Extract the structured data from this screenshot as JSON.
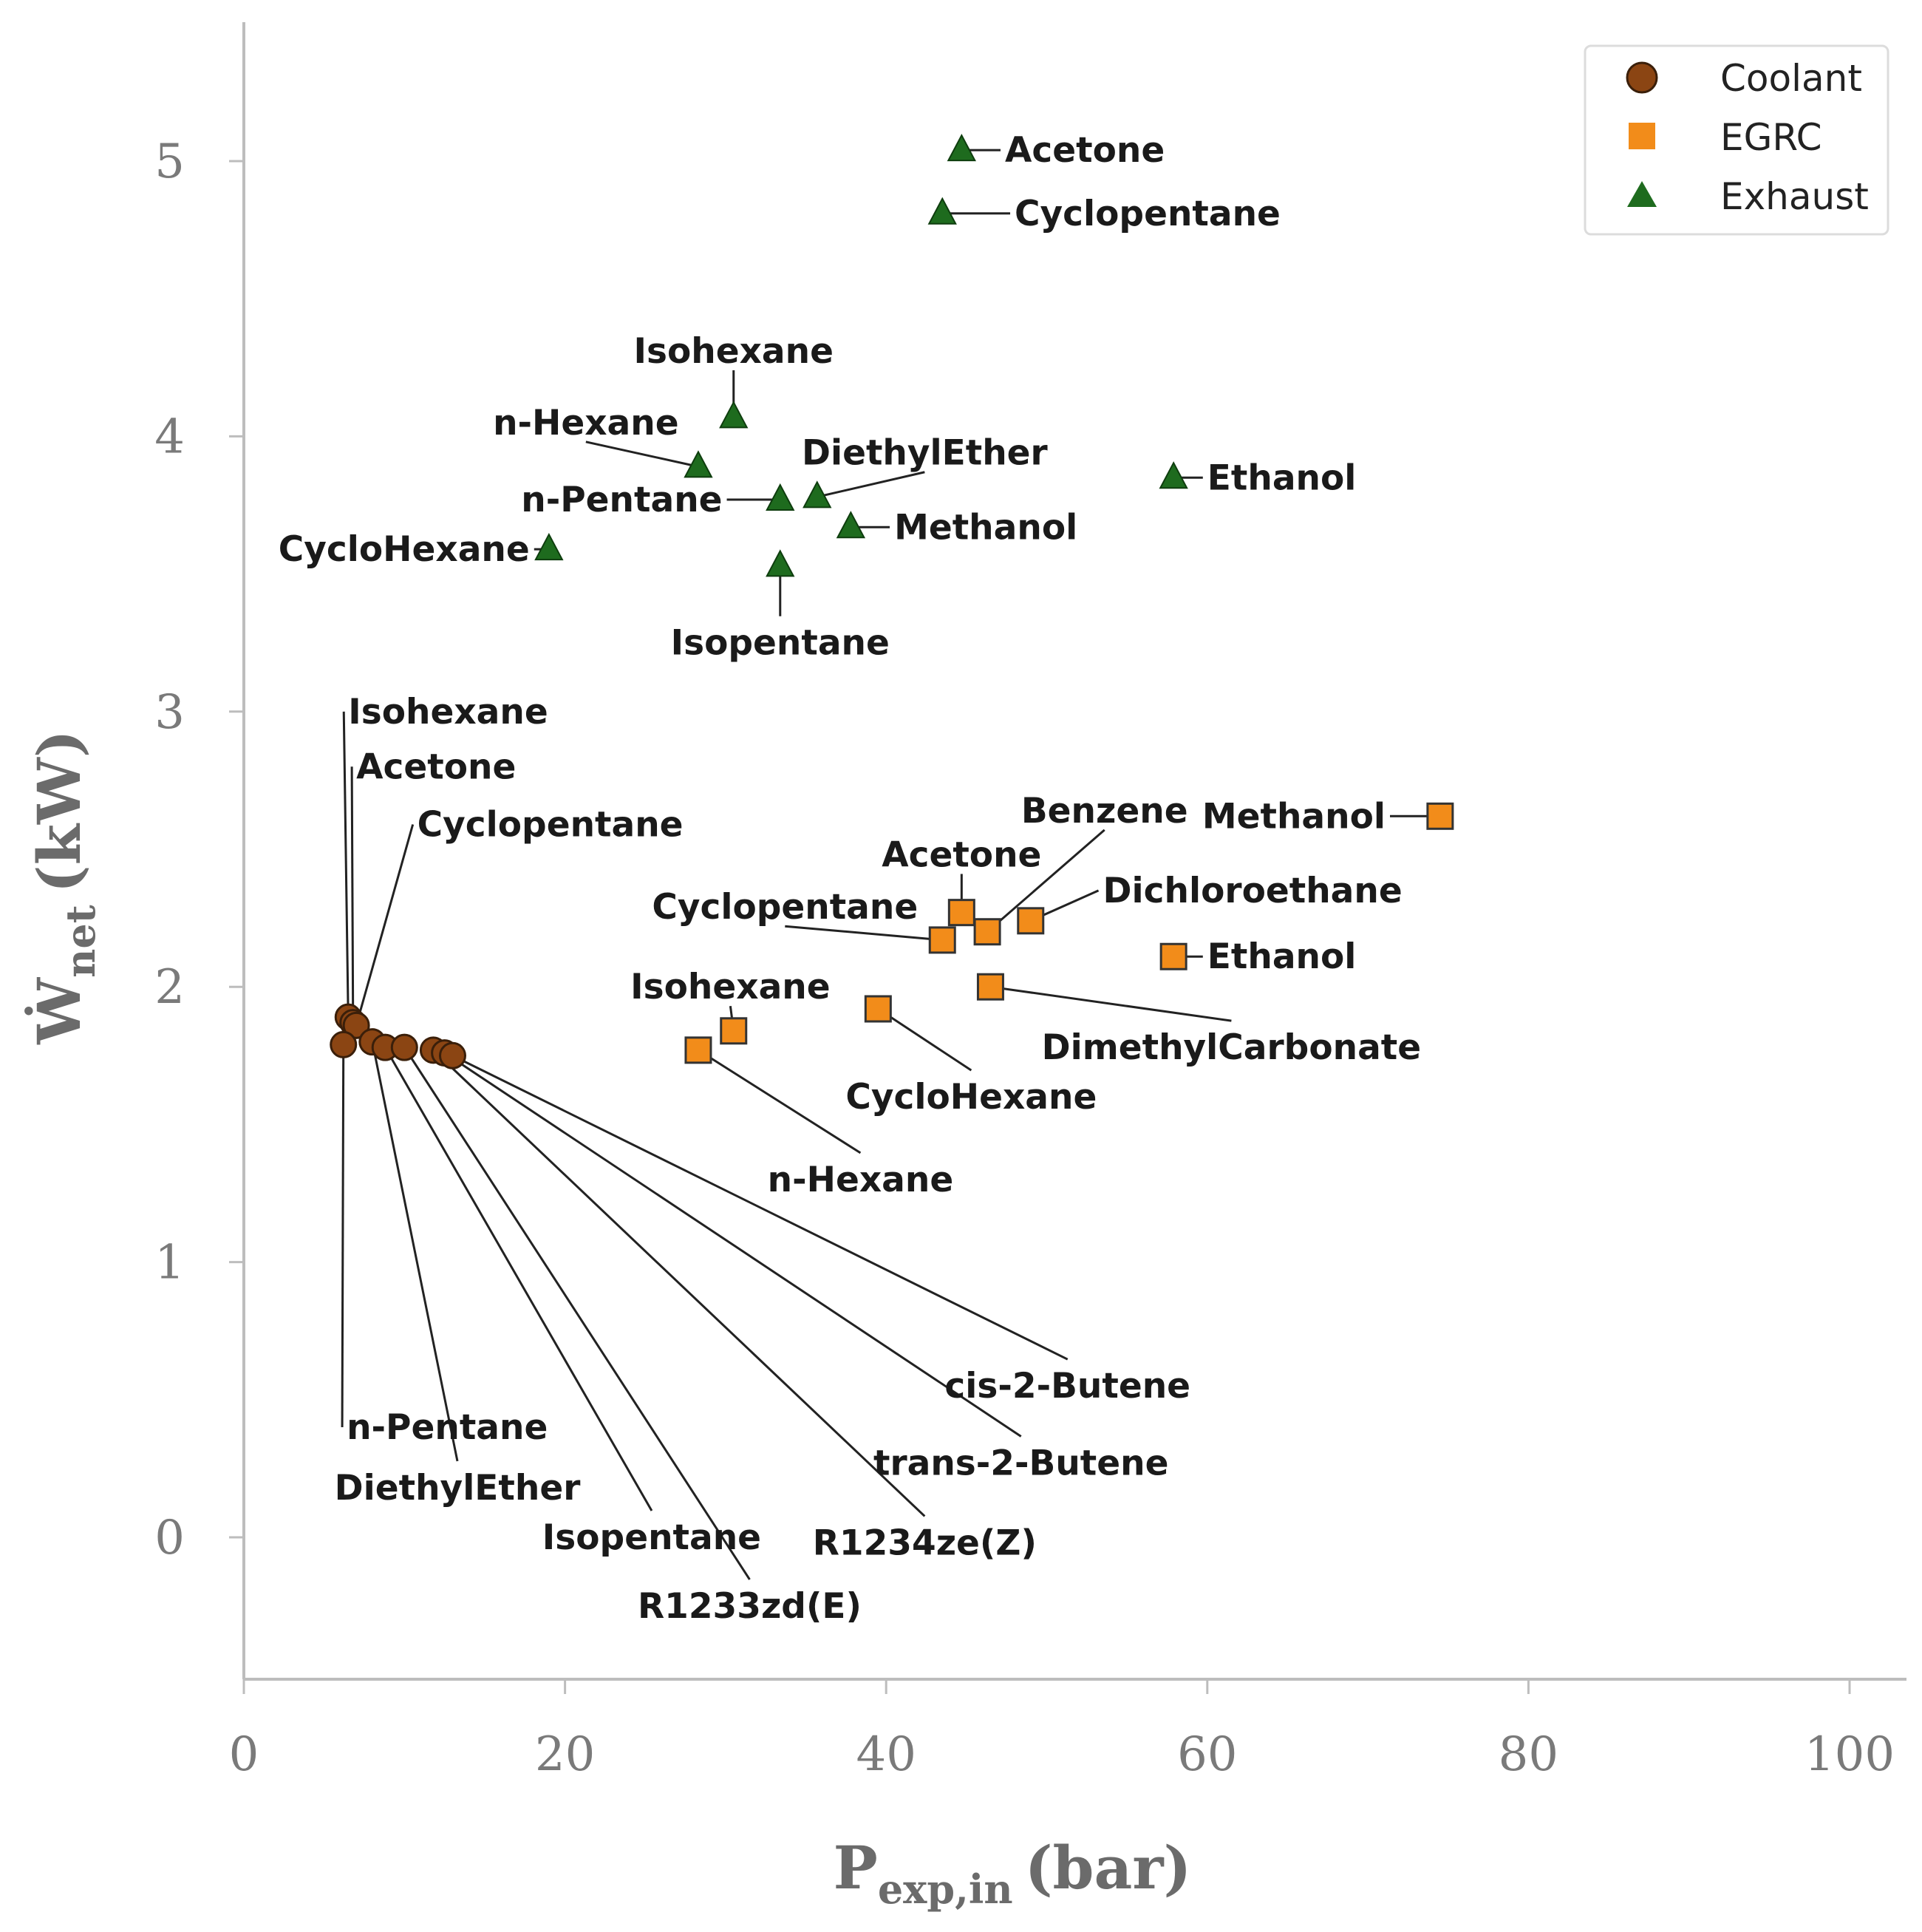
{
  "chart_data": {
    "type": "scatter",
    "title": "",
    "xlabel": {
      "main": "P",
      "sub": "exp,in",
      "unit": "(bar)"
    },
    "ylabel": {
      "main": "Ẇ",
      "sub": "net",
      "unit": "(kW)"
    },
    "xlim": [
      0,
      100
    ],
    "ylim": [
      -0.5,
      5.5
    ],
    "xticks": [
      0,
      20,
      40,
      60,
      80,
      100
    ],
    "yticks": [
      0,
      1,
      2,
      3,
      4,
      5
    ],
    "grid": false,
    "legend_position": "top-right",
    "colors": {
      "Coolant": "#8b4513",
      "EGRC": "#f28c1a",
      "Exhaust": "#1e6b1e"
    },
    "series": [
      {
        "name": "Coolant",
        "marker": "circle",
        "points": [
          {
            "label": "Isohexane",
            "x": 6.5,
            "y": 1.89,
            "lx": 6.5,
            "ly": 3.0,
            "anchor": "start"
          },
          {
            "label": "Acetone",
            "x": 6.8,
            "y": 1.87,
            "lx": 7.0,
            "ly": 2.8,
            "anchor": "start"
          },
          {
            "label": "Cyclopentane",
            "x": 7.0,
            "y": 1.86,
            "lx": 10.8,
            "ly": 2.59,
            "anchor": "start"
          },
          {
            "label": "n-Pentane",
            "x": 6.2,
            "y": 1.79,
            "lx": 6.4,
            "ly": 0.4,
            "anchor": "start"
          },
          {
            "label": "DiethylEther",
            "x": 8.0,
            "y": 1.8,
            "lx": 13.3,
            "ly": 0.18,
            "anchor": "middle"
          },
          {
            "label": "Isopentane",
            "x": 8.8,
            "y": 1.78,
            "lx": 25.4,
            "ly": -0.0,
            "anchor": "middle"
          },
          {
            "label": "R1233zd(E)",
            "x": 10.0,
            "y": 1.78,
            "lx": 31.5,
            "ly": -0.25,
            "anchor": "middle"
          },
          {
            "label": "R1234ze(Z)",
            "x": 11.8,
            "y": 1.77,
            "lx": 42.4,
            "ly": -0.02,
            "anchor": "middle"
          },
          {
            "label": "trans-2-Butene",
            "x": 12.5,
            "y": 1.76,
            "lx": 48.4,
            "ly": 0.27,
            "anchor": "middle"
          },
          {
            "label": "cis-2-Butene",
            "x": 13.0,
            "y": 1.75,
            "lx": 51.3,
            "ly": 0.55,
            "anchor": "middle"
          }
        ]
      },
      {
        "name": "EGRC",
        "marker": "square",
        "points": [
          {
            "label": "Methanol",
            "x": 74.5,
            "y": 2.62,
            "lx": 71.1,
            "ly": 2.62,
            "anchor": "end"
          },
          {
            "label": "Benzene",
            "x": 46.3,
            "y": 2.2,
            "lx": 53.6,
            "ly": 2.64,
            "anchor": "middle"
          },
          {
            "label": "Acetone",
            "x": 44.7,
            "y": 2.27,
            "lx": 44.7,
            "ly": 2.48,
            "anchor": "middle"
          },
          {
            "label": "Dichloroethane",
            "x": 49.0,
            "y": 2.24,
            "lx": 53.5,
            "ly": 2.35,
            "anchor": "start"
          },
          {
            "label": "Cyclopentane",
            "x": 43.5,
            "y": 2.17,
            "lx": 33.7,
            "ly": 2.29,
            "anchor": "middle"
          },
          {
            "label": "Ethanol",
            "x": 57.9,
            "y": 2.11,
            "lx": 60.0,
            "ly": 2.11,
            "anchor": "start"
          },
          {
            "label": "Isohexane",
            "x": 30.5,
            "y": 1.84,
            "lx": 30.3,
            "ly": 2.0,
            "anchor": "middle"
          },
          {
            "label": "DimethylCarbonate",
            "x": 46.5,
            "y": 2.0,
            "lx": 61.5,
            "ly": 1.78,
            "anchor": "middle"
          },
          {
            "label": "CycloHexane",
            "x": 39.5,
            "y": 1.92,
            "lx": 45.3,
            "ly": 1.6,
            "anchor": "middle"
          },
          {
            "label": "n-Hexane",
            "x": 28.3,
            "y": 1.77,
            "lx": 38.4,
            "ly": 1.3,
            "anchor": "middle"
          }
        ]
      },
      {
        "name": "Exhaust",
        "marker": "triangle",
        "points": [
          {
            "label": "Acetone",
            "x": 44.7,
            "y": 5.04,
            "lx": 47.4,
            "ly": 5.04,
            "anchor": "start"
          },
          {
            "label": "Cyclopentane",
            "x": 43.5,
            "y": 4.81,
            "lx": 48.0,
            "ly": 4.81,
            "anchor": "start"
          },
          {
            "label": "Isohexane",
            "x": 30.5,
            "y": 4.07,
            "lx": 30.5,
            "ly": 4.31,
            "anchor": "middle"
          },
          {
            "label": "n-Hexane",
            "x": 28.3,
            "y": 3.89,
            "lx": 21.3,
            "ly": 4.05,
            "anchor": "middle"
          },
          {
            "label": "DiethylEther",
            "x": 35.7,
            "y": 3.78,
            "lx": 42.4,
            "ly": 3.94,
            "anchor": "middle"
          },
          {
            "label": "n-Pentane",
            "x": 33.4,
            "y": 3.77,
            "lx": 29.8,
            "ly": 3.77,
            "anchor": "end"
          },
          {
            "label": "Ethanol",
            "x": 57.9,
            "y": 3.85,
            "lx": 60.0,
            "ly": 3.85,
            "anchor": "start"
          },
          {
            "label": "Methanol",
            "x": 37.8,
            "y": 3.67,
            "lx": 40.5,
            "ly": 3.67,
            "anchor": "start"
          },
          {
            "label": "CycloHexane",
            "x": 19.0,
            "y": 3.59,
            "lx": 17.8,
            "ly": 3.59,
            "anchor": "end"
          },
          {
            "label": "Isopentane",
            "x": 33.4,
            "y": 3.53,
            "lx": 33.4,
            "ly": 3.25,
            "anchor": "middle"
          }
        ]
      }
    ]
  }
}
